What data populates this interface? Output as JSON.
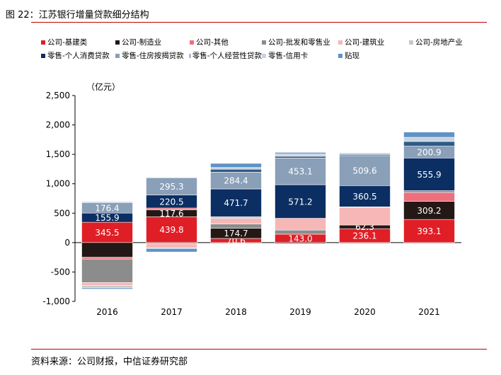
{
  "page": {
    "title": "图 22：江苏银行增量贷款细分结构",
    "source": "资料来源：公司财报，中信证券研究部"
  },
  "colors": {
    "accent_line": "#c00000"
  },
  "chart_data": {
    "type": "bar",
    "stacked": true,
    "unit_label": "（亿元）",
    "categories": [
      "2016",
      "2017",
      "2018",
      "2019",
      "2020",
      "2021"
    ],
    "ylim": [
      -1000,
      2500
    ],
    "yticks": [
      -1000,
      -500,
      0,
      500,
      1000,
      1500,
      2000,
      2500
    ],
    "ytick_labels": [
      "-1,000",
      "-500",
      "0",
      "500",
      "1,000",
      "1,500",
      "2,000",
      "2,500"
    ],
    "grid": false,
    "legend_position": "top",
    "series": [
      {
        "name": "公司-基建类",
        "color": "#e01e26",
        "values": [
          345.5,
          439.8,
          70.6,
          143.0,
          236.1,
          393.1
        ],
        "labeled": true
      },
      {
        "name": "公司-制造业",
        "color": "#231815",
        "values": [
          -250,
          117.6,
          174.7,
          -15,
          62.3,
          309.2
        ],
        "labeled": true
      },
      {
        "name": "公司-其他",
        "color": "#ee6f7d",
        "values": [
          -30,
          30,
          0,
          0,
          0,
          150
        ],
        "labeled": false
      },
      {
        "name": "公司-批发和零售业",
        "color": "#8c8c8c",
        "values": [
          -400,
          -20,
          70,
          70,
          -15,
          30
        ],
        "labeled": false
      },
      {
        "name": "公司-建筑业",
        "color": "#f7b7b7",
        "values": [
          -50,
          -70,
          95,
          200,
          300,
          0
        ],
        "labeled": false
      },
      {
        "name": "公司-房地产业",
        "color": "#c8c8c8",
        "values": [
          -40,
          -10,
          30,
          0,
          10,
          0
        ],
        "labeled": false
      },
      {
        "name": "零售-个人消费贷款",
        "color": "#0b2f63",
        "values": [
          155.9,
          220.5,
          471.7,
          571.2,
          360.5,
          555.9
        ],
        "labeled": true
      },
      {
        "name": "零售-住房按揭贷款",
        "color": "#8a9fb8",
        "values": [
          176.4,
          295.3,
          284.4,
          453.1,
          509.6,
          200.9
        ],
        "labeled": true
      },
      {
        "name": "零售-个人经营性贷款",
        "color": "#2d5b8a",
        "values": [
          10,
          5,
          50,
          30,
          20,
          80
        ],
        "labeled": false
      },
      {
        "name": "零售-信用卡",
        "color": "#c9d3df",
        "values": [
          15,
          5,
          30,
          40,
          20,
          70
        ],
        "labeled": false
      },
      {
        "name": "贴现",
        "color": "#5f93c6",
        "values": [
          -20,
          -60,
          70,
          25,
          10,
          90
        ],
        "labeled": false
      }
    ]
  }
}
